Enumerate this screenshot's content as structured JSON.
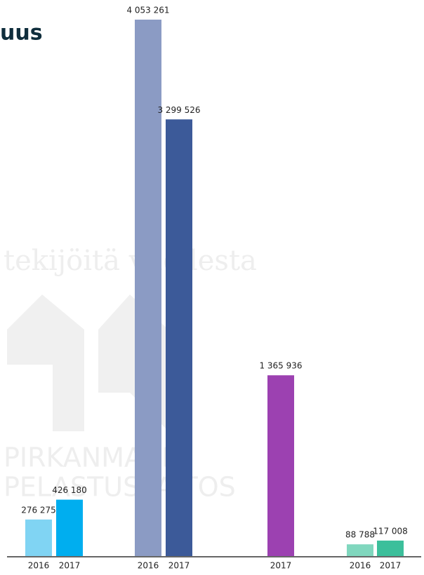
{
  "chart_data": {
    "type": "bar",
    "title": "uus",
    "watermark": [
      "tekijöitä vuodesta",
      "PIRKANMAAN",
      "PELASTUSLAITOS"
    ],
    "groups": [
      {
        "categories": [
          "2016",
          "2017"
        ],
        "values": [
          276275,
          426180
        ],
        "value_labels": [
          "276 275",
          "426 180"
        ],
        "colors": [
          "#80d4f3",
          "#00aeef"
        ]
      },
      {
        "categories": [
          "2016",
          "2017"
        ],
        "values": [
          4053261,
          3299526
        ],
        "value_labels": [
          "4 053 261",
          "3 299 526"
        ],
        "colors": [
          "#8b9bc4",
          "#3c5a99"
        ]
      },
      {
        "categories": [
          "2017"
        ],
        "values": [
          1365936
        ],
        "value_labels": [
          "1 365 936"
        ],
        "colors": [
          "#9c41b1"
        ]
      },
      {
        "categories": [
          "2016",
          "2017"
        ],
        "values": [
          88788,
          117008
        ],
        "value_labels": [
          "88 788",
          "117 008"
        ],
        "colors": [
          "#80d7be",
          "#3cbf9b"
        ]
      }
    ]
  }
}
